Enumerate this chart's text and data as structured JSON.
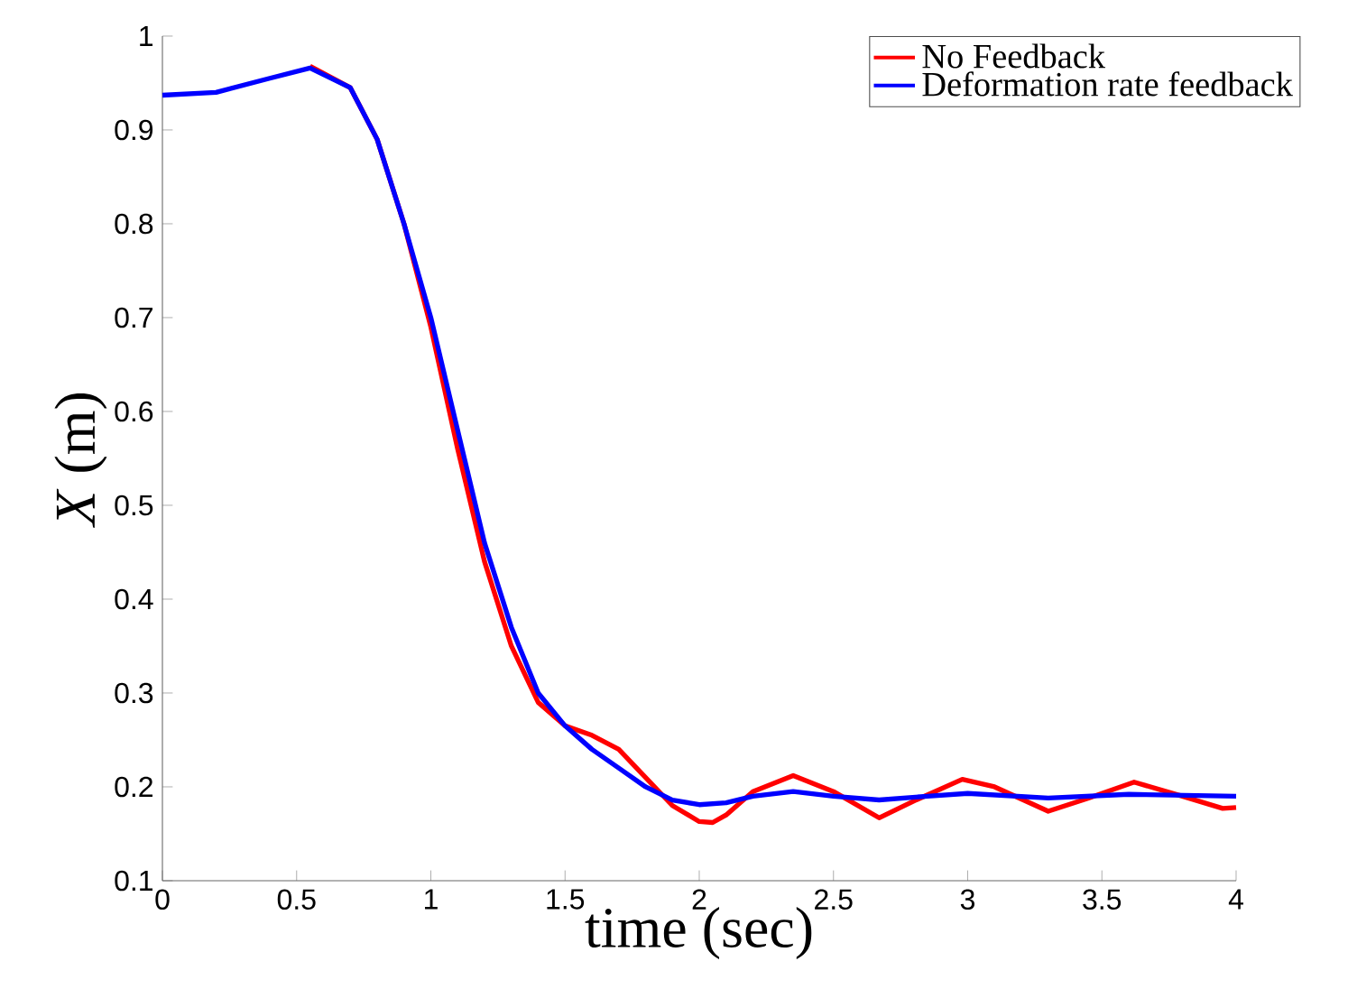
{
  "chart_data": {
    "type": "line",
    "xlabel": "time (sec)",
    "ylabel": "*X* (m)",
    "xlim": [
      0,
      4
    ],
    "ylim": [
      0.1,
      1
    ],
    "xticks": [
      0,
      0.5,
      1,
      1.5,
      2,
      2.5,
      3,
      3.5,
      4
    ],
    "yticks": [
      0.1,
      0.2,
      0.3,
      0.4,
      0.5,
      0.6,
      0.7,
      0.8,
      0.9,
      1
    ],
    "legend": "top right",
    "grid": false,
    "marker": "none",
    "line_style": "solid",
    "series": [
      {
        "name": "No Feedback",
        "color": "#ff0000",
        "x": [
          0.55,
          0.7,
          0.8,
          0.9,
          1.0,
          1.1,
          1.2,
          1.3,
          1.4,
          1.5,
          1.6,
          1.7,
          1.8,
          1.9,
          2.0,
          2.05,
          2.1,
          2.2,
          2.35,
          2.5,
          2.67,
          2.8,
          2.98,
          3.1,
          3.3,
          3.45,
          3.62,
          3.8,
          3.95,
          4.0
        ],
        "values": [
          0.968,
          0.945,
          0.89,
          0.8,
          0.69,
          0.56,
          0.44,
          0.35,
          0.29,
          0.265,
          0.255,
          0.24,
          0.21,
          0.18,
          0.163,
          0.162,
          0.17,
          0.195,
          0.212,
          0.195,
          0.167,
          0.185,
          0.208,
          0.2,
          0.174,
          0.188,
          0.205,
          0.19,
          0.177,
          0.178
        ]
      },
      {
        "name": "Deformation rate feedback",
        "color": "#0000ff",
        "x": [
          0,
          0.2,
          0.4,
          0.55,
          0.7,
          0.8,
          0.9,
          1.0,
          1.1,
          1.2,
          1.3,
          1.4,
          1.5,
          1.6,
          1.7,
          1.8,
          1.9,
          2.0,
          2.1,
          2.2,
          2.35,
          2.5,
          2.67,
          2.85,
          3.0,
          3.3,
          3.6,
          4.0
        ],
        "values": [
          0.937,
          0.94,
          0.955,
          0.966,
          0.945,
          0.89,
          0.8,
          0.7,
          0.58,
          0.46,
          0.37,
          0.3,
          0.265,
          0.24,
          0.22,
          0.2,
          0.186,
          0.181,
          0.183,
          0.19,
          0.195,
          0.19,
          0.186,
          0.19,
          0.193,
          0.188,
          0.192,
          0.19
        ]
      }
    ]
  }
}
